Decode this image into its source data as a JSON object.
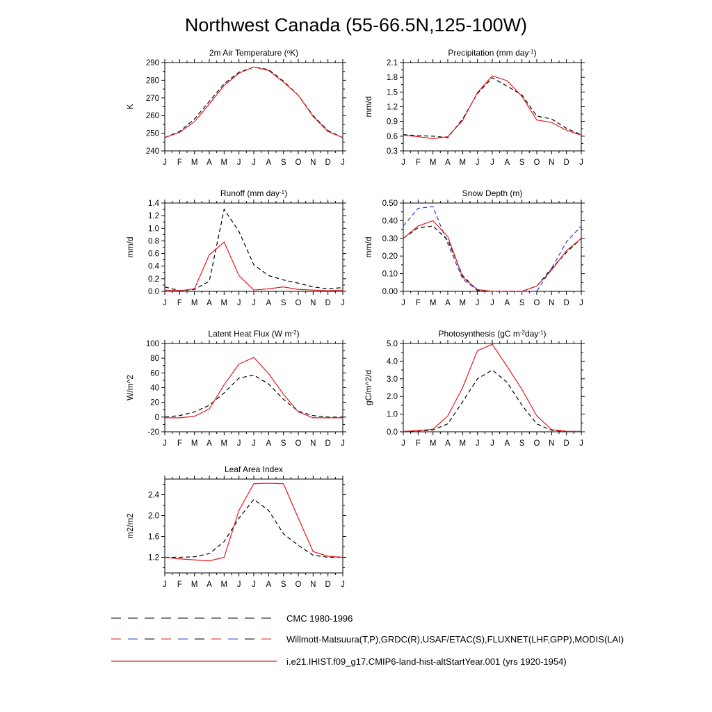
{
  "title": "Northwest Canada (55-66.5N,125-100W)",
  "months": [
    "J",
    "F",
    "M",
    "A",
    "M",
    "J",
    "J",
    "A",
    "S",
    "O",
    "N",
    "D",
    "J"
  ],
  "colors": {
    "model": "#e41a1c",
    "obs_black": "#000000",
    "obs_blue": "#1f3fcf"
  },
  "legend": [
    {
      "label": "CMC 1980-1996",
      "style": "dash-black"
    },
    {
      "label": "Willmott-Matsuura(T,P),GRDC(R),USAF/ETAC(S),FLUXNET(LHF,GPP),MODIS(LAI)",
      "style": "dash-mixed"
    },
    {
      "label": "i.e21.IHIST.f09_g17.CMIP6-land-hist-altStartYear.001 (yrs 1920-1954)",
      "style": "solid-red"
    }
  ],
  "chart_data": [
    {
      "type": "line",
      "title": "2m Air Temperature (°K)",
      "title_parts": [
        "2m Air Temperature (",
        "o",
        "K)"
      ],
      "ylabel": "K",
      "ylim": [
        240,
        290
      ],
      "yticks": [
        240,
        250,
        260,
        270,
        280,
        290
      ],
      "ytick_labels": [
        "240",
        "250",
        "260",
        "270",
        "280",
        "290"
      ],
      "series": [
        {
          "style": "dashed",
          "color": "#000000",
          "values": [
            247.5,
            251,
            258,
            268,
            278,
            284.5,
            287.5,
            286,
            279.5,
            271.5,
            260,
            251.5,
            247.5
          ]
        },
        {
          "style": "solid",
          "color": "#e41a1c",
          "values": [
            247.5,
            250.5,
            256.5,
            266.5,
            277,
            284,
            287.5,
            285.5,
            279,
            271.5,
            259.5,
            251,
            247.5
          ]
        }
      ]
    },
    {
      "type": "line",
      "title": "Precipitation (mm day-1)",
      "title_parts": [
        "Precipitation (mm day",
        "-1",
        ")"
      ],
      "ylabel": "mm/d",
      "ylim": [
        0.3,
        2.1
      ],
      "yticks": [
        0.3,
        0.6,
        0.9,
        1.2,
        1.5,
        1.8,
        2.1
      ],
      "ytick_labels": [
        "0.3",
        "0.6",
        "0.9",
        "1.2",
        "1.5",
        "1.8",
        "2.1"
      ],
      "series": [
        {
          "style": "dashed",
          "color": "#000000",
          "values": [
            0.63,
            0.61,
            0.6,
            0.57,
            0.95,
            1.47,
            1.79,
            1.62,
            1.44,
            1.01,
            0.95,
            0.76,
            0.63
          ]
        },
        {
          "style": "solid",
          "color": "#e41a1c",
          "values": [
            0.62,
            0.59,
            0.55,
            0.59,
            0.92,
            1.49,
            1.83,
            1.73,
            1.41,
            0.93,
            0.88,
            0.72,
            0.62
          ]
        }
      ]
    },
    {
      "type": "line",
      "title": "Runoff (mm day-1)",
      "title_parts": [
        "Runoff (mm day",
        "-1",
        ")"
      ],
      "ylabel": "mm/d",
      "ylim": [
        0,
        1.4
      ],
      "yticks": [
        0,
        0.2,
        0.4,
        0.6,
        0.8,
        1.0,
        1.2,
        1.4
      ],
      "ytick_labels": [
        "0.0",
        "0.2",
        "0.4",
        "0.6",
        "0.8",
        "1.0",
        "1.2",
        "1.4"
      ],
      "series": [
        {
          "style": "dashed",
          "color": "#000000",
          "values": [
            0.07,
            0.01,
            0.03,
            0.16,
            1.3,
            0.95,
            0.42,
            0.25,
            0.18,
            0.13,
            0.07,
            0.04,
            0.06
          ]
        },
        {
          "style": "solid",
          "color": "#e41a1c",
          "values": [
            0.02,
            0.01,
            0.04,
            0.58,
            0.78,
            0.25,
            0.02,
            0.04,
            0.07,
            0.03,
            0.02,
            0.01,
            0.02
          ]
        }
      ]
    },
    {
      "type": "line",
      "title": "Snow Depth (m)",
      "title_parts": [
        "Snow Depth (m)",
        "",
        ""
      ],
      "ylabel": "mm/d",
      "ylim": [
        0,
        0.5
      ],
      "yticks": [
        0,
        0.1,
        0.2,
        0.3,
        0.4,
        0.5
      ],
      "ytick_labels": [
        "0.00",
        "0.10",
        "0.20",
        "0.30",
        "0.40",
        "0.50"
      ],
      "series": [
        {
          "style": "dashed",
          "color": "#1f3fcf",
          "values": [
            0.37,
            0.47,
            0.48,
            0.27,
            0.07,
            0.005,
            0.0,
            0.0,
            0.0,
            0.0,
            0.13,
            0.28,
            0.37
          ]
        },
        {
          "style": "dashed",
          "color": "#000000",
          "values": [
            0.3,
            0.36,
            0.37,
            0.29,
            0.09,
            0.005,
            0.0,
            0.0,
            0.0,
            0.03,
            0.13,
            0.22,
            0.3
          ]
        },
        {
          "style": "solid",
          "color": "#e41a1c",
          "values": [
            0.3,
            0.37,
            0.4,
            0.31,
            0.08,
            0.01,
            0.0,
            0.0,
            0.0,
            0.03,
            0.12,
            0.23,
            0.3
          ]
        }
      ]
    },
    {
      "type": "line",
      "title": "Latent Heat Flux (W m-2)",
      "title_parts": [
        "Latent Heat Flux (W m",
        "-2",
        ")"
      ],
      "ylabel": "W/m^2",
      "ylim": [
        -20,
        100
      ],
      "yticks": [
        -20,
        0,
        20,
        40,
        60,
        80,
        100
      ],
      "ytick_labels": [
        "-20",
        "0",
        "20",
        "40",
        "60",
        "80",
        "100"
      ],
      "series": [
        {
          "style": "dashed",
          "color": "#000000",
          "values": [
            0,
            2,
            7,
            16,
            33,
            53,
            57,
            45,
            24,
            8,
            2,
            0,
            0
          ]
        },
        {
          "style": "solid",
          "color": "#e41a1c",
          "values": [
            -1,
            -1,
            1,
            11,
            44,
            72,
            81,
            59,
            31,
            7,
            -1,
            -1,
            -1
          ]
        }
      ]
    },
    {
      "type": "line",
      "title": "Photosynthesis (gC m-2day-1)",
      "title_parts": [
        "Photosynthesis (gC m",
        "-2",
        "day",
        "-1",
        ")"
      ],
      "ylabel": "gC/m^2/d",
      "ylim": [
        0,
        5
      ],
      "yticks": [
        0,
        1,
        2,
        3,
        4,
        5
      ],
      "ytick_labels": [
        "0.0",
        "1.0",
        "2.0",
        "3.0",
        "4.0",
        "5.0"
      ],
      "series": [
        {
          "style": "dashed",
          "color": "#000000",
          "values": [
            0.02,
            0.05,
            0.1,
            0.45,
            1.7,
            3.0,
            3.5,
            2.8,
            1.5,
            0.45,
            0.08,
            0.02,
            0.02
          ]
        },
        {
          "style": "solid",
          "color": "#e41a1c",
          "values": [
            0.02,
            0.07,
            0.15,
            0.9,
            2.5,
            4.6,
            4.95,
            3.7,
            2.4,
            0.9,
            0.12,
            0.03,
            0.02
          ]
        }
      ]
    },
    {
      "type": "line",
      "title": "Leaf Area Index",
      "title_parts": [
        "Leaf Area Index",
        "",
        ""
      ],
      "ylabel": "m2/m2",
      "ylim": [
        0.9,
        2.7
      ],
      "yticks": [
        1.2,
        1.6,
        2.0,
        2.4
      ],
      "ytick_labels": [
        "1.2",
        "1.6",
        "2.0",
        "2.4"
      ],
      "series": [
        {
          "style": "dashed",
          "color": "#000000",
          "values": [
            1.2,
            1.2,
            1.21,
            1.27,
            1.5,
            1.95,
            2.31,
            2.1,
            1.65,
            1.43,
            1.24,
            1.2,
            1.2
          ]
        },
        {
          "style": "solid",
          "color": "#e41a1c",
          "values": [
            1.2,
            1.17,
            1.15,
            1.13,
            1.2,
            2.1,
            2.61,
            2.62,
            2.61,
            1.95,
            1.31,
            1.22,
            1.2
          ]
        }
      ]
    }
  ]
}
